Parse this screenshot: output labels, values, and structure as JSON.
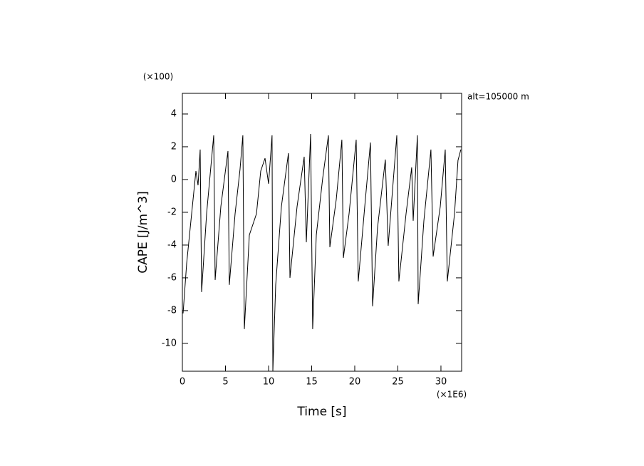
{
  "chart_data": {
    "type": "line",
    "xlabel": "Time [s]",
    "ylabel": "CAPE [J/m^3]",
    "x_scale_label": "(×1E6)",
    "y_scale_label": "(×100)",
    "annotation": "alt=105000 m",
    "color": "#000000",
    "xlim": [
      0,
      32.4
    ],
    "ylim": [
      -11.7,
      5.26
    ],
    "xticks": [
      0,
      5,
      10,
      15,
      20,
      25,
      30
    ],
    "yticks": [
      -10,
      -8,
      -6,
      -4,
      -2,
      0,
      2,
      4
    ],
    "x": [
      0.08,
      0.5,
      1.57,
      1.82,
      2.07,
      2.23,
      2.81,
      3.64,
      3.8,
      4.46,
      5.29,
      5.45,
      6.12,
      6.69,
      7.02,
      7.19,
      7.77,
      8.6,
      9.09,
      9.59,
      10.0,
      10.41,
      10.5,
      10.83,
      11.49,
      12.31,
      12.48,
      13.31,
      14.13,
      14.38,
      14.88,
      15.12,
      15.54,
      16.28,
      16.94,
      17.11,
      17.85,
      18.51,
      18.68,
      19.34,
      20.17,
      20.41,
      21.16,
      21.82,
      22.07,
      22.64,
      23.55,
      23.88,
      24.88,
      25.12,
      25.95,
      26.61,
      26.78,
      27.27,
      27.36,
      28.02,
      28.84,
      29.09,
      29.92,
      30.5,
      30.74,
      31.57,
      31.98,
      32.31
    ],
    "values": [
      -8.17,
      -5.13,
      0.52,
      -0.35,
      1.83,
      -6.87,
      -2.09,
      2.7,
      -6.13,
      -1.65,
      1.74,
      -6.43,
      -2.09,
      0.61,
      2.7,
      -9.13,
      -3.39,
      -2.09,
      0.52,
      1.3,
      -0.26,
      2.7,
      -11.7,
      -6.43,
      -1.65,
      1.61,
      -6.0,
      -1.65,
      1.39,
      -3.83,
      2.78,
      -9.13,
      -3.39,
      0.09,
      2.7,
      -4.13,
      -1.22,
      2.43,
      -4.78,
      -2.09,
      2.43,
      -6.22,
      -1.65,
      2.26,
      -7.74,
      -2.96,
      1.22,
      -4.04,
      2.7,
      -6.22,
      -2.09,
      0.74,
      -2.52,
      2.7,
      -7.61,
      -2.52,
      1.83,
      -4.7,
      -1.65,
      1.83,
      -6.22,
      -2.09,
      1.17,
      1.83
    ]
  }
}
